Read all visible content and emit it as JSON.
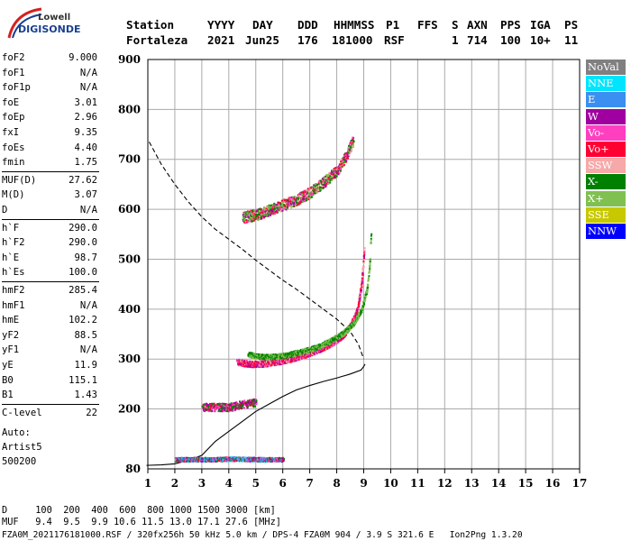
{
  "logo": {
    "line1": "Lowell",
    "line2": "DIGISONDE"
  },
  "header": {
    "labels": [
      "Station",
      "YYYY",
      "DAY",
      "DDD",
      "HHMMSS",
      "P1",
      "FFS",
      "S",
      "AXN",
      "PPS",
      "IGA",
      "PS"
    ],
    "values": [
      "Fortaleza",
      "2021",
      "Jun25",
      "176",
      "181000",
      "RSF",
      "",
      "1",
      "714",
      "100",
      "10+",
      "11"
    ]
  },
  "params": {
    "group1": [
      {
        "k": "foF2",
        "v": "9.000"
      },
      {
        "k": "foF1",
        "v": "N/A"
      },
      {
        "k": "foF1p",
        "v": "N/A"
      },
      {
        "k": "foE",
        "v": "3.01"
      },
      {
        "k": "foEp",
        "v": "2.96"
      },
      {
        "k": "fxI",
        "v": "9.35"
      },
      {
        "k": "foEs",
        "v": "4.40"
      },
      {
        "k": "fmin",
        "v": "1.75"
      }
    ],
    "group2": [
      {
        "k": "MUF(D)",
        "v": "27.62"
      },
      {
        "k": "M(D)",
        "v": "3.07"
      },
      {
        "k": "D",
        "v": "N/A"
      }
    ],
    "group3": [
      {
        "k": "h`F",
        "v": "290.0"
      },
      {
        "k": "h`F2",
        "v": "290.0"
      },
      {
        "k": "h`E",
        "v": "98.7"
      },
      {
        "k": "h`Es",
        "v": "100.0"
      }
    ],
    "group4": [
      {
        "k": "hmF2",
        "v": "285.4"
      },
      {
        "k": "hmF1",
        "v": "N/A"
      },
      {
        "k": "hmE",
        "v": "102.2"
      },
      {
        "k": "yF2",
        "v": "88.5"
      },
      {
        "k": "yF1",
        "v": "N/A"
      },
      {
        "k": "yE",
        "v": "11.9"
      },
      {
        "k": "B0",
        "v": "115.1"
      },
      {
        "k": "B1",
        "v": "1.43"
      }
    ],
    "group5": [
      {
        "k": "C-level",
        "v": "22"
      }
    ],
    "auto": [
      "Auto:",
      "Artist5",
      "500200"
    ]
  },
  "legend": [
    {
      "label": "NoVal",
      "color": "#808080"
    },
    {
      "label": "NNE",
      "color": "#00e5ff"
    },
    {
      "label": "E",
      "color": "#3a8ff0"
    },
    {
      "label": "W",
      "color": "#a0009f"
    },
    {
      "label": "Vo-",
      "color": "#ff3fc0"
    },
    {
      "label": "Vo+",
      "color": "#ff0033"
    },
    {
      "label": "SSW",
      "color": "#f7a8a8"
    },
    {
      "label": "X-",
      "color": "#008000"
    },
    {
      "label": "X+",
      "color": "#80c050"
    },
    {
      "label": "SSE",
      "color": "#c8c800"
    },
    {
      "label": "NNW",
      "color": "#0000ff"
    }
  ],
  "bottom": {
    "line1": "D     100  200  400  600  800 1000 1500 3000 [km]",
    "line2": "MUF   9.4  9.5  9.9 10.6 11.5 13.0 17.1 27.6 [MHz]",
    "line3": "FZA0M_2021176181000.RSF / 320fx256h 50 kHz 5.0 km / DPS-4 FZA0M 904 / 3.9 S 321.6 E   Ion2Png 1.3.20"
  },
  "chart_data": {
    "type": "scatter",
    "xlim": [
      1,
      17
    ],
    "ylim": [
      80,
      900
    ],
    "x_ticks": [
      1,
      2,
      3,
      4,
      5,
      6,
      7,
      8,
      9,
      10,
      11,
      12,
      13,
      14,
      15,
      16,
      17
    ],
    "y_ticks": [
      80,
      200,
      300,
      400,
      500,
      600,
      700,
      800,
      900
    ],
    "grid": true,
    "legend_position": "right",
    "series": [
      {
        "style": "dashed-line",
        "x": [
          1.05,
          1.5,
          2.0,
          2.5,
          3.0,
          3.5,
          4.0,
          4.5,
          5.0,
          5.5,
          6.0,
          6.5,
          7.0,
          7.5,
          8.0,
          8.5,
          8.8,
          9.0
        ],
        "y": [
          735,
          690,
          650,
          615,
          585,
          560,
          540,
          520,
          498,
          478,
          458,
          440,
          420,
          400,
          380,
          355,
          330,
          300
        ]
      },
      {
        "style": "solid-line",
        "x": [
          0.95,
          1.5,
          2.0,
          2.5,
          3.0,
          3.5,
          4.0,
          4.5,
          5.0,
          5.5,
          6.0,
          6.5,
          7.0,
          7.5,
          8.0,
          8.5,
          8.9,
          9.0,
          9.05
        ],
        "y": [
          87,
          88,
          90,
          97,
          107,
          135,
          155,
          175,
          195,
          210,
          225,
          238,
          247,
          255,
          262,
          270,
          278,
          285,
          290
        ]
      },
      {
        "style": "o-trace",
        "x": [
          4.3,
          4.8,
          5.3,
          5.8,
          6.3,
          6.8,
          7.3,
          7.8,
          8.2,
          8.5,
          8.75,
          8.9,
          9.0
        ],
        "y": [
          295,
          291,
          292,
          296,
          302,
          310,
          320,
          333,
          348,
          368,
          400,
          450,
          520
        ]
      },
      {
        "style": "x-trace",
        "x": [
          4.7,
          5.2,
          5.7,
          6.2,
          6.7,
          7.2,
          7.7,
          8.2,
          8.6,
          8.9,
          9.1,
          9.2,
          9.25
        ],
        "y": [
          310,
          306,
          306,
          310,
          316,
          324,
          336,
          352,
          372,
          400,
          440,
          490,
          550
        ]
      },
      {
        "style": "o-echo-2hop",
        "x": [
          4.5,
          5.0,
          5.5,
          6.0,
          6.5,
          7.0,
          7.5,
          8.0,
          8.3,
          8.6
        ],
        "y": [
          585,
          590,
          600,
          610,
          620,
          635,
          655,
          680,
          705,
          740
        ]
      },
      {
        "style": "es-echo",
        "x": [
          2.0,
          2.5,
          3.0,
          3.5,
          4.0,
          4.5,
          5.0,
          5.5,
          6.0
        ],
        "y": [
          100,
          100,
          100,
          100,
          101,
          101,
          100,
          100,
          100
        ]
      },
      {
        "style": "es-2hop",
        "x": [
          3.0,
          3.5,
          4.0,
          4.5,
          5.0
        ],
        "y": [
          205,
          205,
          205,
          210,
          215
        ]
      }
    ]
  }
}
